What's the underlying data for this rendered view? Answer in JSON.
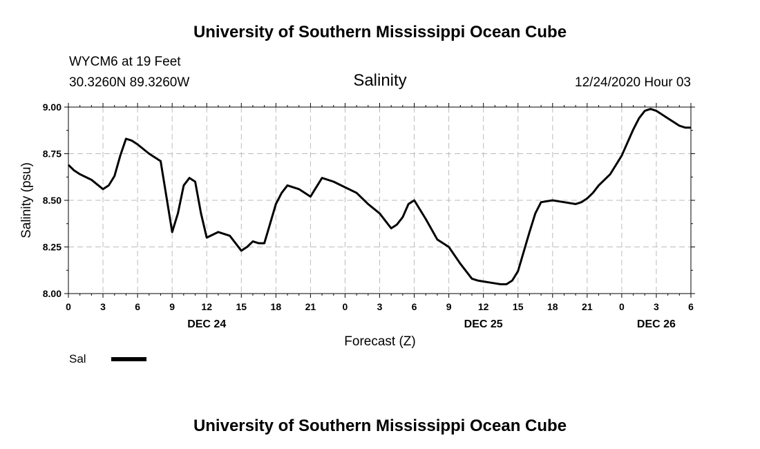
{
  "header": {
    "title_top": "University of Southern Mississippi Ocean Cube",
    "station": "WYCM6 at 19 Feet",
    "coords": "30.3260N 89.3260W",
    "chart_title": "Salinity",
    "timestamp": "12/24/2020 Hour 03",
    "title_bottom": "University of Southern Mississippi Ocean Cube"
  },
  "legend": {
    "label": "Sal"
  },
  "chart_data": {
    "type": "line",
    "title": "Salinity",
    "xlabel": "Forecast (Z)",
    "ylabel": "Salinity (psu)",
    "ylim": [
      8.0,
      9.0
    ],
    "xlim": [
      0,
      54
    ],
    "y_ticks": [
      "8.00",
      "8.25",
      "8.50",
      "8.75",
      "9.00"
    ],
    "x_ticks": [
      {
        "h": 0,
        "label": "0"
      },
      {
        "h": 3,
        "label": "3"
      },
      {
        "h": 6,
        "label": "6"
      },
      {
        "h": 9,
        "label": "9"
      },
      {
        "h": 12,
        "label": "12"
      },
      {
        "h": 15,
        "label": "15"
      },
      {
        "h": 18,
        "label": "18"
      },
      {
        "h": 21,
        "label": "21"
      },
      {
        "h": 24,
        "label": "0"
      },
      {
        "h": 27,
        "label": "3"
      },
      {
        "h": 30,
        "label": "6"
      },
      {
        "h": 33,
        "label": "9"
      },
      {
        "h": 36,
        "label": "12"
      },
      {
        "h": 39,
        "label": "15"
      },
      {
        "h": 42,
        "label": "18"
      },
      {
        "h": 45,
        "label": "21"
      },
      {
        "h": 48,
        "label": "0"
      },
      {
        "h": 51,
        "label": "3"
      },
      {
        "h": 54,
        "label": "6"
      }
    ],
    "date_labels": [
      {
        "h": 12,
        "label": "DEC 24"
      },
      {
        "h": 36,
        "label": "DEC 25"
      },
      {
        "h": 51,
        "label": "DEC 26"
      }
    ],
    "grid": true,
    "series": [
      {
        "name": "Sal",
        "color": "#000000",
        "x": [
          0,
          0.5,
          1,
          2,
          3,
          3.5,
          4,
          4.5,
          5,
          5.5,
          6,
          7,
          8,
          9,
          9.5,
          10,
          10.5,
          11,
          11.5,
          12,
          13,
          14,
          15,
          15.5,
          16,
          16.5,
          17,
          18,
          18.5,
          19,
          20,
          21,
          22,
          23,
          24,
          25,
          26,
          27,
          27.5,
          28,
          28.5,
          29,
          29.5,
          30,
          31,
          32,
          33,
          34,
          35,
          35.5,
          36,
          37,
          37.5,
          38,
          38.5,
          39,
          40,
          40.5,
          41,
          42,
          43,
          44,
          44.5,
          45,
          45.5,
          46,
          47,
          48,
          49,
          49.5,
          50,
          50.5,
          51,
          52,
          53,
          53.5,
          54
        ],
        "values": [
          8.69,
          8.66,
          8.64,
          8.61,
          8.56,
          8.58,
          8.63,
          8.74,
          8.83,
          8.82,
          8.8,
          8.75,
          8.71,
          8.33,
          8.43,
          8.58,
          8.62,
          8.6,
          8.43,
          8.3,
          8.33,
          8.31,
          8.23,
          8.25,
          8.28,
          8.27,
          8.27,
          8.48,
          8.54,
          8.58,
          8.56,
          8.52,
          8.62,
          8.6,
          8.57,
          8.54,
          8.48,
          8.43,
          8.39,
          8.35,
          8.37,
          8.41,
          8.48,
          8.5,
          8.4,
          8.29,
          8.25,
          8.16,
          8.08,
          8.07,
          8.065,
          8.055,
          8.05,
          8.05,
          8.07,
          8.12,
          8.33,
          8.43,
          8.49,
          8.5,
          8.49,
          8.48,
          8.49,
          8.51,
          8.54,
          8.58,
          8.64,
          8.74,
          8.88,
          8.94,
          8.98,
          8.99,
          8.98,
          8.94,
          8.9,
          8.89,
          8.89
        ]
      }
    ]
  }
}
